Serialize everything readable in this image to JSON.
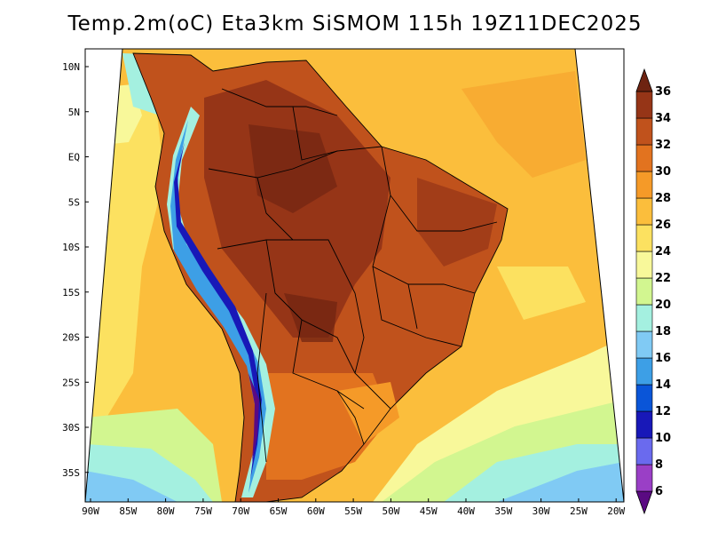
{
  "title": "Temp.2m(oC) Eta3km SiSMOM 115h 19Z11DEC2025",
  "variable": "Temp.2m",
  "units": "oC",
  "model": "Eta3km SiSMOM",
  "forecast_hour": "115h",
  "valid_time": "19Z11DEC2025",
  "lat_labels": [
    {
      "label": "10N",
      "lat": 10
    },
    {
      "label": "5N",
      "lat": 5
    },
    {
      "label": "EQ",
      "lat": 0
    },
    {
      "label": "5S",
      "lat": -5
    },
    {
      "label": "10S",
      "lat": -10
    },
    {
      "label": "15S",
      "lat": -15
    },
    {
      "label": "20S",
      "lat": -20
    },
    {
      "label": "25S",
      "lat": -25
    },
    {
      "label": "30S",
      "lat": -30
    },
    {
      "label": "35S",
      "lat": -35
    }
  ],
  "lon_labels": [
    {
      "label": "90W",
      "lon": -90
    },
    {
      "label": "85W",
      "lon": -85
    },
    {
      "label": "80W",
      "lon": -80
    },
    {
      "label": "75W",
      "lon": -75
    },
    {
      "label": "70W",
      "lon": -70
    },
    {
      "label": "65W",
      "lon": -65
    },
    {
      "label": "60W",
      "lon": -60
    },
    {
      "label": "55W",
      "lon": -55
    },
    {
      "label": "50W",
      "lon": -50
    },
    {
      "label": "45W",
      "lon": -45
    },
    {
      "label": "40W",
      "lon": -40
    },
    {
      "label": "35W",
      "lon": -35
    },
    {
      "label": "30W",
      "lon": -30
    },
    {
      "label": "25W",
      "lon": -25
    },
    {
      "label": "20W",
      "lon": -20
    }
  ],
  "colorbar": {
    "levels": [
      "6",
      "8",
      "10",
      "12",
      "14",
      "16",
      "18",
      "20",
      "22",
      "24",
      "26",
      "28",
      "30",
      "32",
      "34",
      "36"
    ],
    "colors": [
      "#5a0a82",
      "#9a3fc6",
      "#6a6aee",
      "#1818b8",
      "#0a55d8",
      "#3d9fe6",
      "#80caf4",
      "#a4f0e0",
      "#d2f690",
      "#f8f89a",
      "#fce160",
      "#fbbe3c",
      "#f59a28",
      "#e2731f",
      "#c0521c",
      "#963517",
      "#6e2311"
    ]
  }
}
